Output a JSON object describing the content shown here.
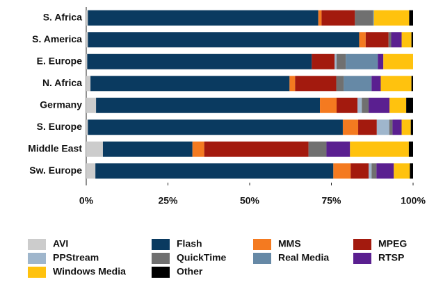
{
  "chart_data": {
    "type": "stacked_bar_horizontal",
    "categories": [
      "S. Africa",
      "S. America",
      "E. Europe",
      "N. Africa",
      "Germany",
      "S. Europe",
      "Middle East",
      "Sw. Europe"
    ],
    "series": [
      {
        "name": "AVI",
        "color": "#cccccc",
        "values": [
          0.5,
          0.5,
          0.3,
          1.3,
          3,
          0.5,
          5.1,
          2.8
        ]
      },
      {
        "name": "Flash",
        "color": "#0a3a60",
        "values": [
          70.5,
          83,
          68.7,
          60.9,
          68.5,
          78,
          27.4,
          72.8
        ]
      },
      {
        "name": "MMS",
        "color": "#f47a20",
        "values": [
          1,
          2,
          0,
          1.7,
          5.1,
          4.7,
          3.6,
          5.3
        ]
      },
      {
        "name": "MPEG",
        "color": "#a31a0e",
        "values": [
          10.2,
          7,
          7,
          12.6,
          6.4,
          5.7,
          31.9,
          5.5
        ]
      },
      {
        "name": "PPStream",
        "color": "#9fb6cc",
        "values": [
          0,
          0,
          0.6,
          0,
          1.3,
          3.8,
          0,
          0.9
        ]
      },
      {
        "name": "QuickTime",
        "color": "#707070",
        "values": [
          5.5,
          0.8,
          2.8,
          2.3,
          2.1,
          1,
          5.5,
          1.5
        ]
      },
      {
        "name": "Real Media",
        "color": "#6689a6",
        "values": [
          0.3,
          0,
          9.8,
          8.5,
          0,
          0,
          0,
          0
        ]
      },
      {
        "name": "RTSP",
        "color": "#5a1f90",
        "values": [
          0,
          3.2,
          1.7,
          2.8,
          6.4,
          2.8,
          7.2,
          5.3
        ]
      },
      {
        "name": "Windows Media",
        "color": "#ffc20e",
        "values": [
          10.8,
          3,
          9.1,
          9.4,
          5.1,
          2.8,
          18,
          4.9
        ]
      },
      {
        "name": "Other",
        "color": "#000000",
        "values": [
          1.2,
          0.5,
          0,
          0.5,
          2.1,
          0.7,
          1.3,
          1
        ]
      }
    ],
    "xlim": [
      0,
      100
    ],
    "xticks": [
      {
        "value": 0,
        "label": "0%"
      },
      {
        "value": 25,
        "label": "25%"
      },
      {
        "value": 50,
        "label": "50%"
      },
      {
        "value": 75,
        "label": "75%"
      },
      {
        "value": 100,
        "label": "100%"
      }
    ]
  }
}
